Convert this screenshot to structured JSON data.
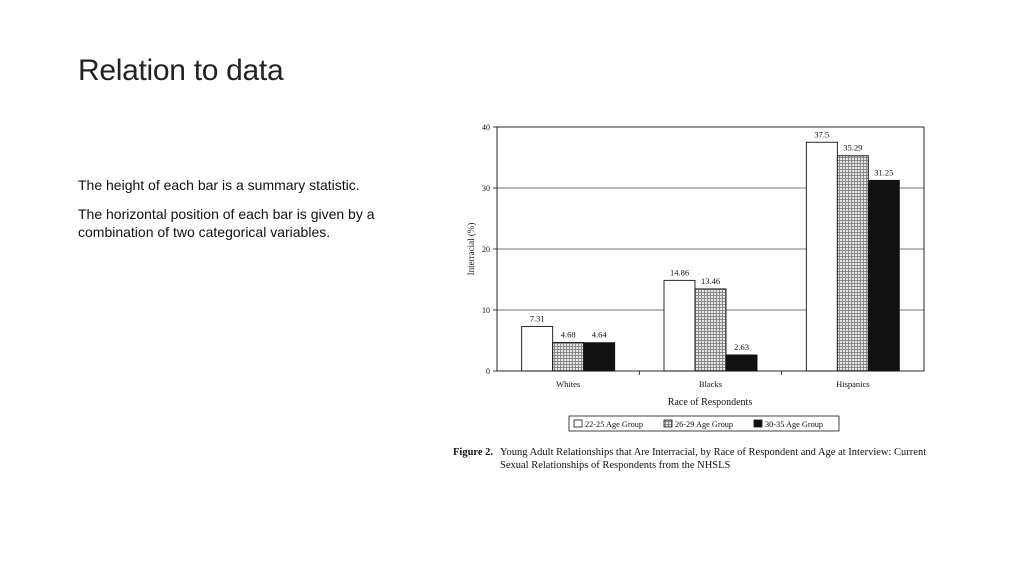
{
  "slide": {
    "title": "Relation to data",
    "bullets": [
      "The height of each bar is a summary statistic.",
      "The horizontal position of each bar is given by a combination of two categorical variables."
    ]
  },
  "chart_data": {
    "type": "bar",
    "categories": [
      "Whites",
      "Blacks",
      "Hispanics"
    ],
    "series": [
      {
        "name": "22-25 Age Group",
        "values": [
          7.31,
          14.86,
          37.5
        ],
        "labels": [
          "7.31",
          "14.86",
          "37.5"
        ]
      },
      {
        "name": "26-29 Age Group",
        "values": [
          4.68,
          13.46,
          35.29
        ],
        "labels": [
          "4.68",
          "13.46",
          "35.29"
        ]
      },
      {
        "name": "30-35 Age Group",
        "values": [
          4.64,
          2.63,
          31.25
        ],
        "labels": [
          "4.64",
          "2.63",
          "31.25"
        ]
      }
    ],
    "xlabel": "Race of Respondents",
    "ylabel": "Interracial (%)",
    "ylim": [
      0,
      40
    ],
    "yticks": [
      0,
      10,
      20,
      30,
      40
    ],
    "grid": true,
    "legend": "bottom-center",
    "series_colors": [
      "#ffffff",
      "#c8c8c8",
      "#111111"
    ],
    "caption_label": "Figure 2.",
    "caption_text": "Young Adult Relationships that Are Interracial, by Race of Respondent and Age at Interview: Current Sexual Relationships of Respondents from the NHSLS"
  }
}
